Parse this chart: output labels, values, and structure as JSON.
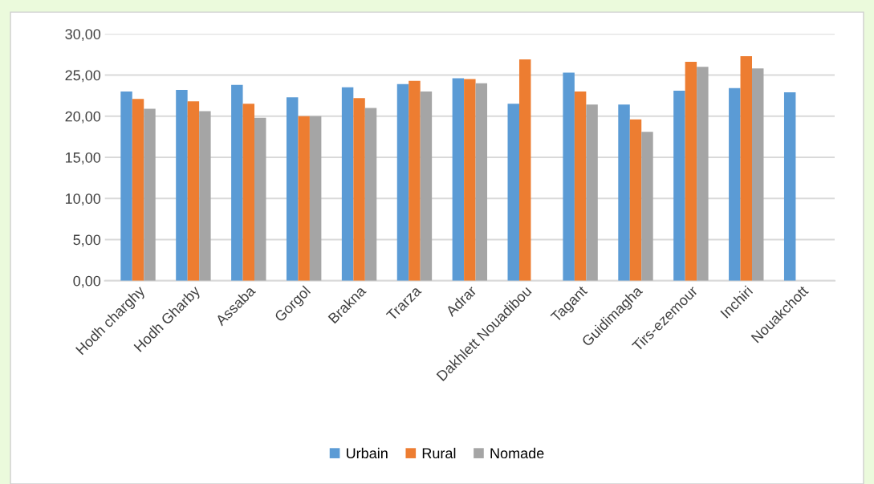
{
  "chart_data": {
    "type": "bar",
    "categories": [
      "Hodh charghy",
      "Hodh Gharby",
      "Assaba",
      "Gorgol",
      "Brakna",
      "Trarza",
      "Adrar",
      "Dakhlett Nouadibou",
      "Tagant",
      "Guidimagha",
      "Tirs-ezemour",
      "Inchiri",
      "Nouakchott"
    ],
    "series": [
      {
        "name": "Urbain",
        "color": "#5b9bd5",
        "values": [
          23.0,
          23.2,
          23.8,
          22.3,
          23.5,
          23.9,
          24.6,
          21.5,
          25.3,
          21.4,
          23.1,
          23.4,
          22.9
        ]
      },
      {
        "name": "Rural",
        "color": "#ed7d31",
        "values": [
          22.1,
          21.8,
          21.5,
          20.0,
          22.2,
          24.3,
          24.5,
          26.9,
          23.0,
          19.6,
          26.6,
          27.3,
          0
        ]
      },
      {
        "name": "Nomade",
        "color": "#a5a5a5",
        "values": [
          20.9,
          20.6,
          19.8,
          20.0,
          21.0,
          23.0,
          24.0,
          0,
          21.4,
          18.1,
          26.0,
          25.8,
          0
        ]
      }
    ],
    "ylim": [
      0,
      30
    ],
    "yticks": [
      {
        "value": 0,
        "label": "0,00"
      },
      {
        "value": 5,
        "label": "5,00"
      },
      {
        "value": 10,
        "label": "10,00"
      },
      {
        "value": 15,
        "label": "15,00"
      },
      {
        "value": 20,
        "label": "20,00"
      },
      {
        "value": 25,
        "label": "25,00"
      },
      {
        "value": 30,
        "label": "30,00"
      }
    ],
    "grid": "y",
    "legend": "bottom"
  }
}
